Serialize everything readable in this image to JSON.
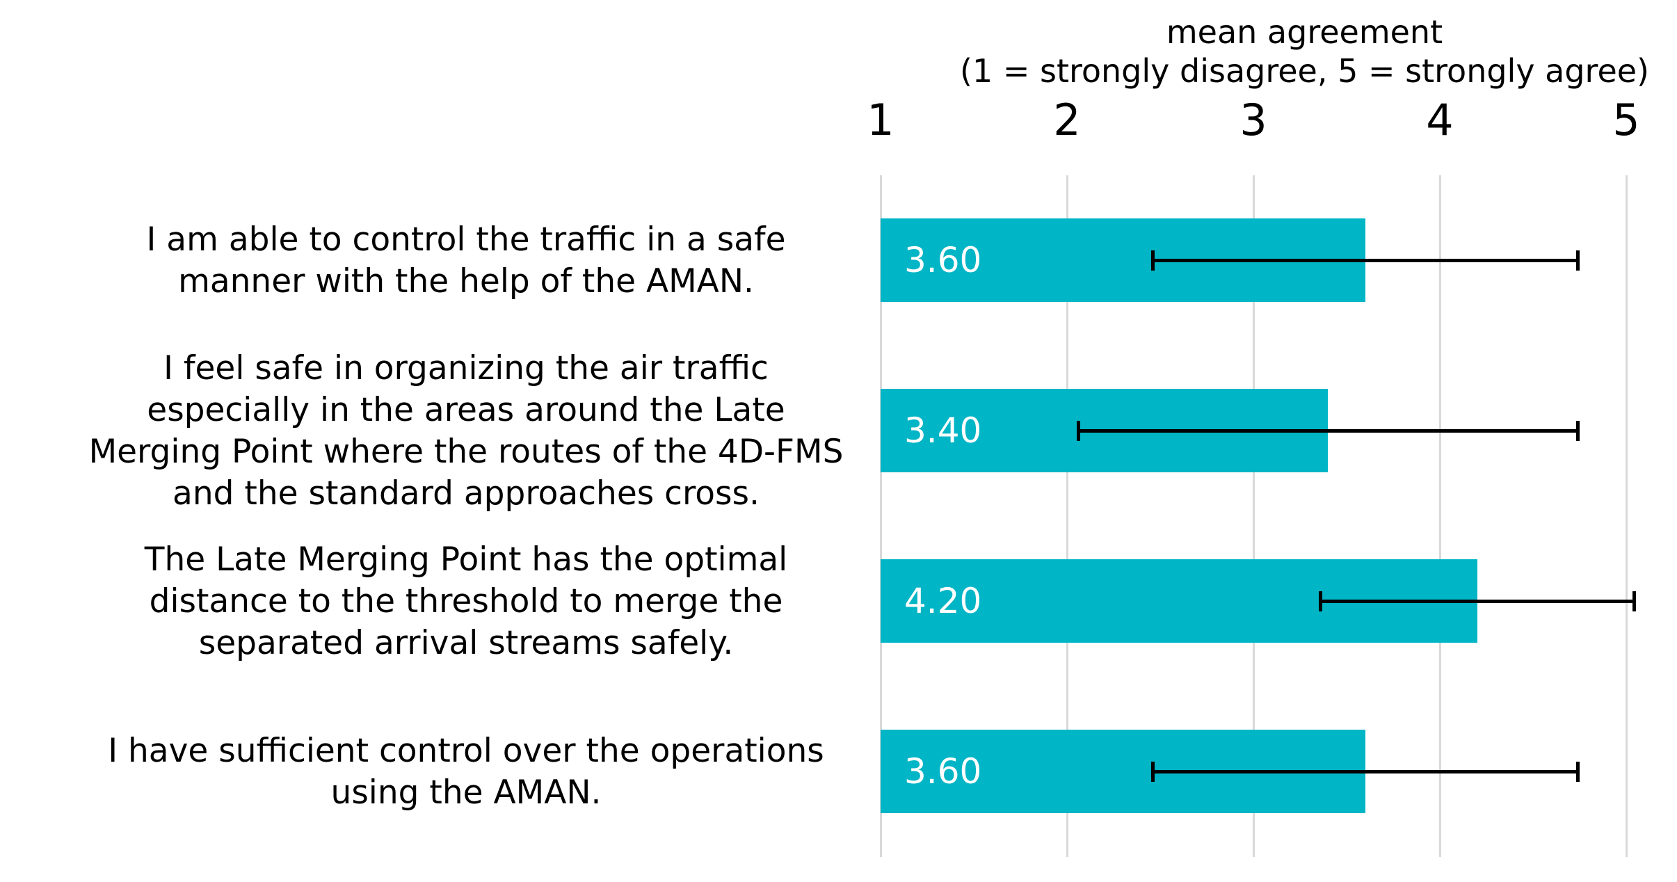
{
  "chart_data": {
    "type": "bar",
    "orientation": "horizontal",
    "title": "mean agreement",
    "subtitle": "(1 = strongly disagree, 5 = strongly agree)",
    "xlim": [
      1,
      5
    ],
    "x_ticks": [
      "1",
      "2",
      "3",
      "4",
      "5"
    ],
    "grid": true,
    "legend": "none",
    "colors": {
      "bar": "#00b5c5",
      "error_bar": "#000000",
      "gridline": "#d9d9d9",
      "value_label": "#ffffff",
      "text": "#000000",
      "background": "#ffffff"
    },
    "categories": [
      "I am able to control the traffic in a safe manner with the help of the AMAN.",
      "I feel safe in organizing the air traffic especially in the areas around the Late Merging Point where the routes of the 4D-FMS and the standard approaches cross.",
      "The Late Merging Point has the optimal distance to the threshold to merge the separated arrival streams safely.",
      "I have sufficient control over the operations using the AMAN."
    ],
    "category_lines": [
      [
        "I am able to control the traffic in a safe",
        "manner with the help of the AMAN."
      ],
      [
        "I feel safe in organizing the air traffic",
        "especially in the areas around the Late",
        "Merging Point where the routes of the 4D-FMS",
        "and the standard approaches cross."
      ],
      [
        "The Late Merging Point has the optimal",
        "distance to the threshold to merge the",
        "separated arrival streams safely."
      ],
      [
        "I have sufficient control over the operations",
        "using the AMAN."
      ]
    ],
    "series": [
      {
        "name": "mean agreement",
        "values": [
          3.6,
          3.4,
          4.2,
          3.6
        ],
        "value_labels": [
          "3.60",
          "3.40",
          "4.20",
          "3.60"
        ],
        "error_low": [
          2.46,
          2.06,
          3.36,
          2.46
        ],
        "error_high": [
          4.74,
          4.74,
          5.04,
          4.74
        ]
      }
    ]
  }
}
